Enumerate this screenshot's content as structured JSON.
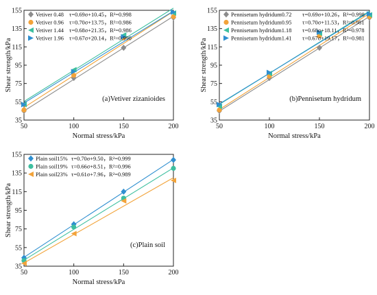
{
  "chart_data": [
    {
      "type": "scatter",
      "panel_label": "(a)Vetiver zizanioides",
      "xlabel": "Normal stress/kPa",
      "ylabel": "Shear strength/kPa",
      "xlim": [
        50,
        200
      ],
      "ylim": [
        35,
        155
      ],
      "xticks": [
        50,
        100,
        150,
        200
      ],
      "yticks": [
        35,
        55,
        75,
        95,
        115,
        135,
        155
      ],
      "legend_position": "top-left",
      "series": [
        {
          "name": "Vetiver 0.48",
          "equation": "τ=0.69σ+10.45",
          "r2": "R²=0.998",
          "color": "#8c8c8c",
          "marker": "diamond",
          "slope": 0.69,
          "intercept": 10.45,
          "points": [
            [
              50,
              45
            ],
            [
              100,
              81
            ],
            [
              150,
              114
            ],
            [
              200,
              147
            ]
          ]
        },
        {
          "name": "Vetiver 0.96",
          "equation": "τ=0.70σ+13.75",
          "r2": "R²=0.986",
          "color": "#f2a33a",
          "marker": "circle",
          "slope": 0.7,
          "intercept": 13.75,
          "points": [
            [
              50,
              46
            ],
            [
              100,
              84
            ],
            [
              150,
              125
            ],
            [
              200,
              148
            ]
          ]
        },
        {
          "name": "Vetiver 1.44",
          "equation": "τ=0.68σ+21.35",
          "r2": "R²=0.986",
          "color": "#3dbf9f",
          "marker": "triangle-left",
          "slope": 0.68,
          "intercept": 21.35,
          "points": [
            [
              50,
              52
            ],
            [
              100,
              90
            ],
            [
              150,
              128
            ],
            [
              200,
              152
            ]
          ]
        },
        {
          "name": "Vetiver 1.96",
          "equation": "τ=0.67σ+20.14",
          "r2": "R²=0.990",
          "color": "#2f8fd0",
          "marker": "triangle-right",
          "slope": 0.67,
          "intercept": 20.14,
          "points": [
            [
              50,
              52
            ],
            [
              100,
              88
            ],
            [
              150,
              126
            ],
            [
              200,
              153
            ]
          ]
        }
      ]
    },
    {
      "type": "scatter",
      "panel_label": "(b)Pennisetum hydridum",
      "xlabel": "Normal stress/kPa",
      "ylabel": "Shear strength/kPa",
      "xlim": [
        50,
        200
      ],
      "ylim": [
        35,
        155
      ],
      "xticks": [
        50,
        100,
        150,
        200
      ],
      "yticks": [
        35,
        55,
        75,
        95,
        115,
        135,
        155
      ],
      "legend_position": "top-left",
      "series": [
        {
          "name": "Pennisetum hydridum0.72",
          "equation": "τ=0.69σ+10.26",
          "r2": "R²=0.998",
          "color": "#8c8c8c",
          "marker": "diamond",
          "slope": 0.69,
          "intercept": 10.26,
          "points": [
            [
              50,
              45
            ],
            [
              100,
              81
            ],
            [
              150,
              114
            ],
            [
              200,
              147
            ]
          ]
        },
        {
          "name": "Pennisetum hydridum0.95",
          "equation": "τ=0.70σ+11.53",
          "r2": "R²=0.981",
          "color": "#f2a33a",
          "marker": "circle",
          "slope": 0.7,
          "intercept": 11.53,
          "points": [
            [
              50,
              46
            ],
            [
              100,
              83
            ],
            [
              150,
              127
            ],
            [
              200,
              148
            ]
          ]
        },
        {
          "name": "Pennisetum hydridum1.18",
          "equation": "τ=0.68σ+18.11",
          "r2": "R²=0.978",
          "color": "#3dbf9f",
          "marker": "triangle-left",
          "slope": 0.68,
          "intercept": 18.11,
          "points": [
            [
              50,
              50
            ],
            [
              100,
              86
            ],
            [
              150,
              130
            ],
            [
              200,
              150
            ]
          ]
        },
        {
          "name": "Pennisetum hydridum1.41",
          "equation": "τ=0.67σ+19.17",
          "r2": "R²=0.981",
          "color": "#2f8fd0",
          "marker": "triangle-right",
          "slope": 0.67,
          "intercept": 19.17,
          "points": [
            [
              50,
              52
            ],
            [
              100,
              87
            ],
            [
              150,
              131
            ],
            [
              200,
              151
            ]
          ]
        }
      ]
    },
    {
      "type": "scatter",
      "panel_label": "(c)Plain soil",
      "xlabel": "Normal stress/kPa",
      "ylabel": "Shear strength/kPa",
      "xlim": [
        50,
        200
      ],
      "ylim": [
        35,
        155
      ],
      "xticks": [
        50,
        100,
        150,
        200
      ],
      "yticks": [
        35,
        55,
        75,
        95,
        115,
        135,
        155
      ],
      "legend_position": "top-left",
      "series": [
        {
          "name": "Plain soil15%",
          "equation": "τ=0.70σ+9.50",
          "r2": "R²=0.999",
          "color": "#2f8fd0",
          "marker": "diamond",
          "slope": 0.7,
          "intercept": 9.5,
          "points": [
            [
              50,
              44
            ],
            [
              100,
              80
            ],
            [
              150,
              115
            ],
            [
              200,
              149
            ]
          ]
        },
        {
          "name": "Plain soil19%",
          "equation": "τ=0.66σ+8.51",
          "r2": "R²=0.996",
          "color": "#3dbf9f",
          "marker": "circle",
          "slope": 0.66,
          "intercept": 8.51,
          "points": [
            [
              50,
              41
            ],
            [
              100,
              77
            ],
            [
              150,
              108
            ],
            [
              200,
              140
            ]
          ]
        },
        {
          "name": "Plain soil23%",
          "equation": "τ=0.61σ+7.96",
          "r2": "R²=0.989",
          "color": "#f2a33a",
          "marker": "triangle-left",
          "slope": 0.61,
          "intercept": 7.96,
          "points": [
            [
              50,
              38
            ],
            [
              100,
              70
            ],
            [
              150,
              105
            ],
            [
              200,
              127
            ]
          ]
        }
      ]
    }
  ]
}
